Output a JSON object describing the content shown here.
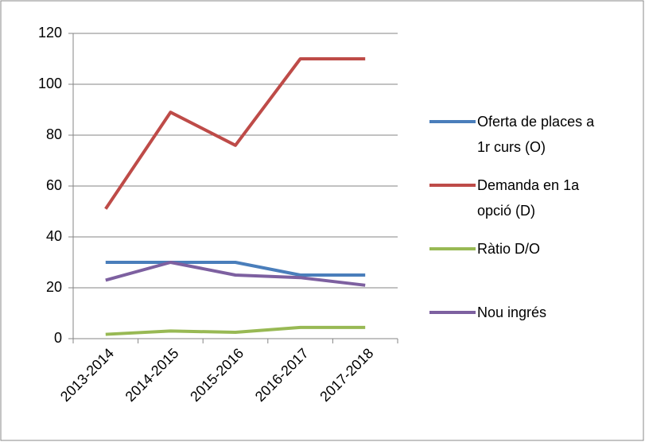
{
  "chart_data": {
    "type": "line",
    "categories": [
      "2013-2014",
      "2014-2015",
      "2015-2016",
      "2016-2017",
      "2017-2018"
    ],
    "series": [
      {
        "name": "Oferta de places a 1r curs (O)",
        "color": "#4a7ebb",
        "values": [
          30,
          30,
          30,
          25,
          25
        ]
      },
      {
        "name": "Demanda en 1a opció (D)",
        "color": "#be4b48",
        "values": [
          51,
          89,
          76,
          110,
          110
        ]
      },
      {
        "name": "Ràtio D/O",
        "color": "#98b954",
        "values": [
          1.7,
          3.0,
          2.5,
          4.4,
          4.4
        ]
      },
      {
        "name": "Nou ingrés",
        "color": "#7d60a0",
        "values": [
          23,
          30,
          25,
          24,
          21
        ]
      }
    ],
    "ylim": [
      0,
      120
    ],
    "yticks": [
      0,
      20,
      40,
      60,
      80,
      100,
      120
    ],
    "grid": true,
    "legend": "right"
  }
}
